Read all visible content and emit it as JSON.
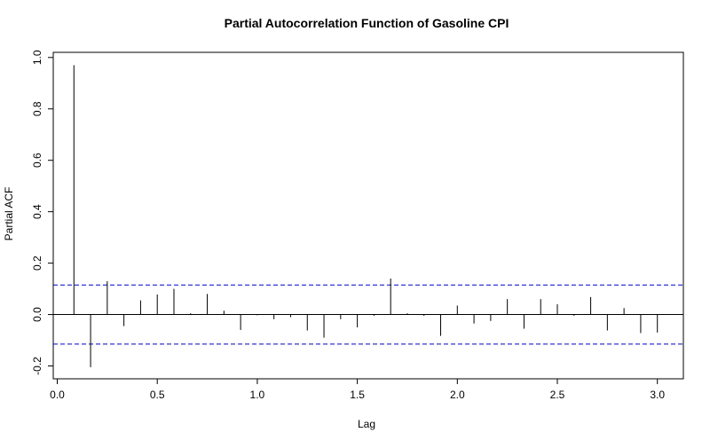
{
  "chart_data": {
    "type": "bar",
    "title": "Partial Autocorrelation Function of Gasoline CPI",
    "xlabel": "Lag",
    "ylabel": "Partial ACF",
    "xlim": [
      -0.02,
      3.13
    ],
    "ylim": [
      -0.25,
      1.02
    ],
    "x_ticks": [
      "0.0",
      "0.5",
      "1.0",
      "1.5",
      "2.0",
      "2.5",
      "3.0"
    ],
    "x_tick_values": [
      0,
      0.5,
      1,
      1.5,
      2,
      2.5,
      3
    ],
    "y_ticks": [
      "-0.2",
      "0.0",
      "0.2",
      "0.4",
      "0.6",
      "0.8",
      "1.0"
    ],
    "y_tick_values": [
      -0.2,
      0,
      0.2,
      0.4,
      0.6,
      0.8,
      1
    ],
    "confidence_bound": 0.115,
    "colors": {
      "bound_line": "#0000CC",
      "spike": "#000000",
      "axis": "#000000"
    },
    "lags": [
      0.0833,
      0.1667,
      0.25,
      0.3333,
      0.4167,
      0.5,
      0.5833,
      0.6667,
      0.75,
      0.8333,
      0.9167,
      1.0,
      1.0833,
      1.1667,
      1.25,
      1.3333,
      1.4167,
      1.5,
      1.5833,
      1.6667,
      1.75,
      1.8333,
      1.9167,
      2.0,
      2.0833,
      2.1667,
      2.25,
      2.3333,
      2.4167,
      2.5,
      2.5833,
      2.6667,
      2.75,
      2.8333,
      2.9167,
      3.0
    ],
    "values": [
      0.97,
      -0.205,
      0.13,
      -0.045,
      0.055,
      0.078,
      0.1,
      0.005,
      0.08,
      0.015,
      -0.06,
      -0.003,
      -0.018,
      -0.01,
      -0.062,
      -0.09,
      -0.018,
      -0.05,
      -0.005,
      0.14,
      0.005,
      -0.005,
      -0.083,
      0.035,
      -0.035,
      -0.025,
      0.06,
      -0.055,
      0.06,
      0.04,
      -0.005,
      0.068,
      -0.062,
      0.025,
      -0.072,
      -0.07
    ]
  }
}
